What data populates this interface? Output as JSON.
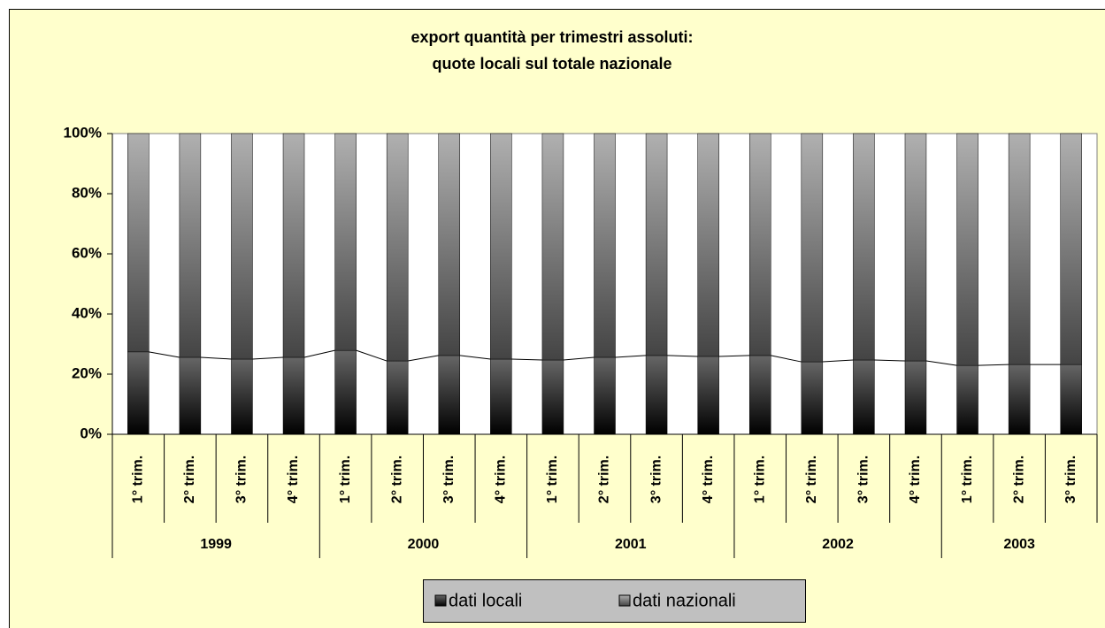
{
  "chart_data": {
    "type": "stacked_bar_100",
    "title": [
      "export quantità per trimestri assoluti:",
      "quote locali sul totale nazionale"
    ],
    "categories": [
      "1° trim.",
      "2° trim.",
      "3° trim.",
      "4° trim.",
      "1° trim.",
      "2° trim.",
      "3° trim.",
      "4° trim.",
      "1° trim.",
      "2° trim.",
      "3° trim.",
      "4° trim.",
      "1° trim.",
      "2° trim.",
      "3° trim.",
      "4° trim.",
      "1° trim.",
      "2° trim.",
      "3° trim."
    ],
    "groups": [
      {
        "label": "1999",
        "count": 4
      },
      {
        "label": "2000",
        "count": 4
      },
      {
        "label": "2001",
        "count": 4
      },
      {
        "label": "2002",
        "count": 4
      },
      {
        "label": "2003",
        "count": 3
      }
    ],
    "series": [
      {
        "name": "dati locali",
        "color": "#333333",
        "values": [
          27.4,
          25.6,
          25.0,
          25.6,
          27.9,
          24.4,
          26.2,
          25.0,
          24.7,
          25.6,
          26.2,
          25.9,
          26.2,
          24.1,
          24.7,
          24.4,
          22.9,
          23.2,
          23.2
        ]
      },
      {
        "name": "dati nazionali",
        "color": "#888888",
        "values": [
          72.6,
          74.4,
          75.0,
          74.4,
          72.1,
          75.6,
          73.8,
          75.0,
          75.3,
          74.4,
          73.8,
          74.1,
          73.8,
          75.9,
          75.3,
          75.6,
          77.1,
          76.8,
          76.8
        ]
      }
    ],
    "ylim": [
      0,
      100
    ],
    "yticks": [
      {
        "value": 0,
        "label": "0%"
      },
      {
        "value": 20,
        "label": "20%"
      },
      {
        "value": 40,
        "label": "40%"
      },
      {
        "value": 60,
        "label": "60%"
      },
      {
        "value": 80,
        "label": "80%"
      },
      {
        "value": 100,
        "label": "100%"
      }
    ],
    "series_lines": true,
    "legend": "bottom"
  }
}
